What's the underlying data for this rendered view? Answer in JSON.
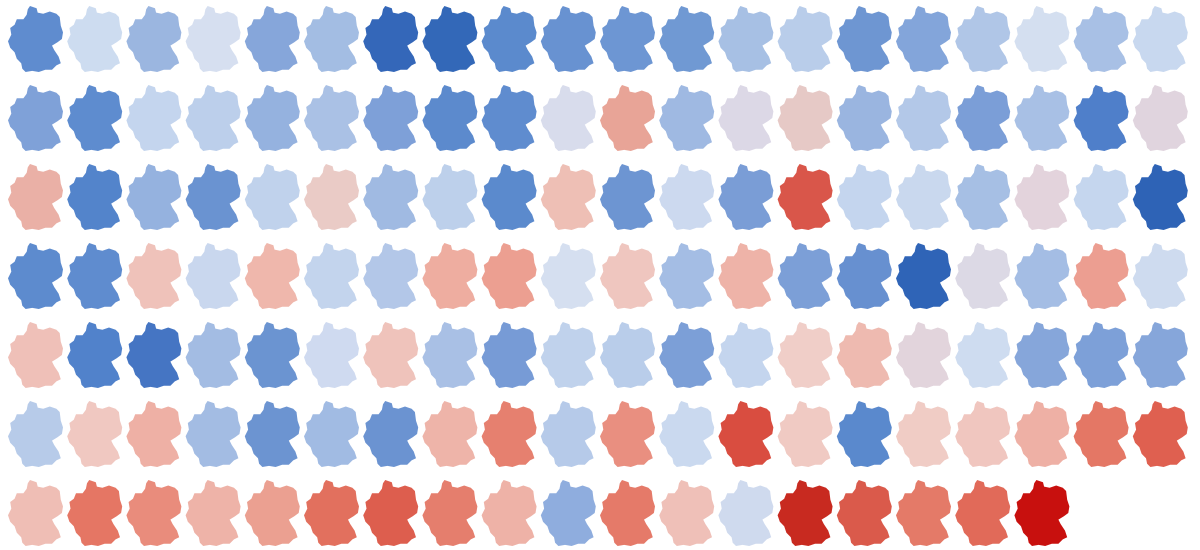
{
  "tiles": [
    "#5f8ccf",
    "#cddcf0",
    "#9bb6e0",
    "#d6dff0",
    "#86a6da",
    "#a3bde3",
    "#3467b9",
    "#3368b8",
    "#5b8acd",
    "#6892d1",
    "#6d96d3",
    "#7099d3",
    "#a7c0e4",
    "#b9cdea",
    "#6e96d2",
    "#83a5da",
    "#b0c6e7",
    "#d4dff0",
    "#a8c0e5",
    "#c8d8ef",
    "#7fa1d8",
    "#5e8ccf",
    "#c4d5ee",
    "#bccfeb",
    "#95b2df",
    "#aac1e5",
    "#7ea0d8",
    "#5c8acd",
    "#5f8ccf",
    "#d8dcec",
    "#e8a497",
    "#9fb9e2",
    "#dcd8e6",
    "#e6c9c6",
    "#9ab5e0",
    "#b3c8e8",
    "#7b9ed7",
    "#a8c0e5",
    "#4f7fca",
    "#e0d4de",
    "#eab0a6",
    "#5384cb",
    "#95b2df",
    "#6a93d1",
    "#c0d2ec",
    "#eacbc6",
    "#a0bae2",
    "#bdd0eb",
    "#5b8acd",
    "#eebfb5",
    "#6d95d2",
    "#ccd9ef",
    "#7a9dd6",
    "#d9564a",
    "#c4d5ee",
    "#c9d8ee",
    "#a6bfe4",
    "#e3d3dc",
    "#c5d6ee",
    "#2e63b6",
    "#5d8bce",
    "#5f8ccf",
    "#efc2ba",
    "#c9d7ee",
    "#efb7ac",
    "#c3d4ed",
    "#b3c7e8",
    "#eeada0",
    "#ec9f91",
    "#d5dff0",
    "#efc6bf",
    "#a4bde4",
    "#eeb3a8",
    "#7c9fd7",
    "#6790d0",
    "#2f64b7",
    "#dcd9e5",
    "#a4bde4",
    "#ec9e91",
    "#cedbef",
    "#efc0b8",
    "#5182cb",
    "#4575c3",
    "#a3bce3",
    "#6b94d1",
    "#cfdaf0",
    "#efc3bb",
    "#a9c0e5",
    "#779bd6",
    "#c0d2ec",
    "#b9cdea",
    "#7c9fd7",
    "#c4d5ee",
    "#f0cec8",
    "#eebab0",
    "#e2d4dc",
    "#cedcf0",
    "#86a6da",
    "#7da0d8",
    "#86a6da",
    "#b7cbe9",
    "#f0c8c1",
    "#eeb0a5",
    "#a3bce3",
    "#6c94d1",
    "#a1bbe3",
    "#6b93d1",
    "#eeb4a9",
    "#e6806f",
    "#b6cae9",
    "#e98f80",
    "#cad9ef",
    "#d94d40",
    "#f0cac3",
    "#5a89cd",
    "#f0ccc5",
    "#f0c6bf",
    "#eeb0a5",
    "#e47765",
    "#df6050",
    "#efbeb5",
    "#e57664",
    "#e98c7c",
    "#eeb3a8",
    "#eba091",
    "#e2705e",
    "#dd5e4e",
    "#e57e6d",
    "#eeb2a7",
    "#8fadde",
    "#e57a69",
    "#efc0b8",
    "#cfdaee",
    "#c82a20",
    "#da5a4b",
    "#e47a68",
    "#e16a59",
    "#c8100e"
  ]
}
